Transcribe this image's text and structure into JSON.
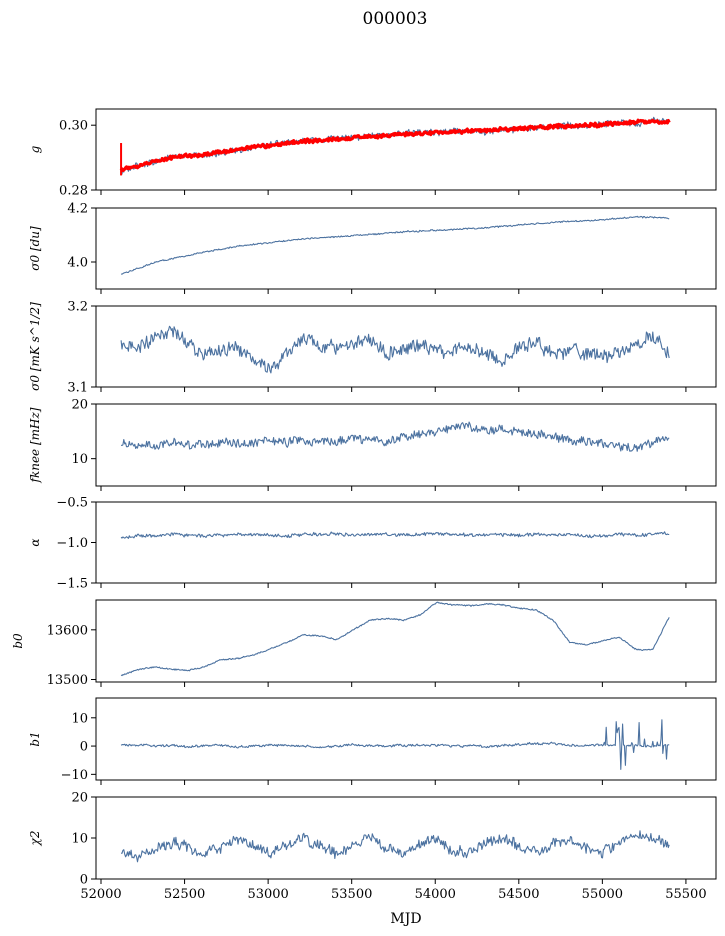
{
  "figure_title": "000003",
  "xlabel": "MJD",
  "colors": {
    "series": "#4c72a0",
    "overlay": "#ff0000",
    "axes": "#000000"
  },
  "chart_data": [
    {
      "type": "line",
      "ylabel": "g",
      "xlim": [
        51970,
        55680
      ],
      "ylim": [
        0.28,
        0.305
      ],
      "yticks": [
        0.28,
        0.3
      ],
      "ytick_labels": [
        "0.28",
        "0.30"
      ],
      "series": [
        {
          "x_range": [
            52120,
            55400
          ],
          "values": [
            0.2855,
            0.2872,
            0.2886,
            0.2902,
            0.2908,
            0.2905,
            0.2916,
            0.2922,
            0.2935,
            0.2941,
            0.2948,
            0.2952,
            0.2954,
            0.2962,
            0.296,
            0.2967,
            0.2969,
            0.2975,
            0.2976,
            0.2978,
            0.298,
            0.2983,
            0.2978,
            0.2987,
            0.2985,
            0.2993,
            0.2994,
            0.3,
            0.2996,
            0.3004,
            0.301,
            0.3001,
            0.3015,
            0.3011
          ],
          "noise": 0.001,
          "seed": 11
        },
        {
          "x_range": [
            52120,
            55400
          ],
          "values": [
            0.286,
            0.2873,
            0.2888,
            0.29,
            0.2905,
            0.291,
            0.2918,
            0.2925,
            0.2932,
            0.2938,
            0.2944,
            0.295,
            0.2954,
            0.2958,
            0.2961,
            0.2965,
            0.2968,
            0.2972,
            0.2975,
            0.2977,
            0.298,
            0.2983,
            0.2986,
            0.2988,
            0.299,
            0.2993,
            0.2995,
            0.2998,
            0.3,
            0.3003,
            0.3006,
            0.3008,
            0.3011,
            0.3012
          ],
          "noise": 0.0006,
          "seed": 12,
          "overlay": true
        }
      ]
    },
    {
      "type": "line",
      "ylabel": "σ0 [du]",
      "xlim": [
        51970,
        55680
      ],
      "ylim": [
        3.9,
        4.2
      ],
      "yticks": [
        4.0,
        4.2
      ],
      "ytick_labels": [
        "4.0",
        "4.2"
      ],
      "series": [
        {
          "x_range": [
            52120,
            55400
          ],
          "values": [
            3.955,
            3.975,
            3.998,
            4.012,
            4.024,
            4.037,
            4.047,
            4.058,
            4.066,
            4.072,
            4.08,
            4.085,
            4.09,
            4.094,
            4.098,
            4.102,
            4.107,
            4.112,
            4.115,
            4.117,
            4.12,
            4.124,
            4.127,
            4.132,
            4.138,
            4.143,
            4.146,
            4.15,
            4.153,
            4.157,
            4.162,
            4.167,
            4.165,
            4.162
          ],
          "noise": 0.003,
          "seed": 21
        }
      ]
    },
    {
      "type": "line",
      "ylabel": "σ0 [mK s^1/2]",
      "xlim": [
        51970,
        55680
      ],
      "ylim": [
        3.1,
        3.2
      ],
      "yticks": [
        3.1,
        3.2
      ],
      "ytick_labels": [
        "3.1",
        "3.2"
      ],
      "series": [
        {
          "x_range": [
            52120,
            55400
          ],
          "values": [
            3.152,
            3.148,
            3.16,
            3.17,
            3.155,
            3.14,
            3.145,
            3.15,
            3.132,
            3.12,
            3.145,
            3.16,
            3.15,
            3.148,
            3.152,
            3.16,
            3.14,
            3.15,
            3.152,
            3.145,
            3.148,
            3.15,
            3.14,
            3.13,
            3.152,
            3.155,
            3.14,
            3.145,
            3.142,
            3.138,
            3.145,
            3.15,
            3.165,
            3.14
          ],
          "noise": 0.009,
          "seed": 31
        }
      ]
    },
    {
      "type": "line",
      "ylabel": "fknee [mHz]",
      "xlim": [
        51970,
        55680
      ],
      "ylim": [
        5,
        20
      ],
      "yticks": [
        10,
        20
      ],
      "ytick_labels": [
        "10",
        "20"
      ],
      "series": [
        {
          "x_range": [
            52120,
            55400
          ],
          "values": [
            13.0,
            12.6,
            12.3,
            12.8,
            12.5,
            12.6,
            12.9,
            12.6,
            13.0,
            13.2,
            12.8,
            13.5,
            13.3,
            13.1,
            13.8,
            13.5,
            13.2,
            14.0,
            14.5,
            15.2,
            15.5,
            15.8,
            15.6,
            15.3,
            15.0,
            14.5,
            14.0,
            13.5,
            13.0,
            12.5,
            12.3,
            12.0,
            12.8,
            14.0
          ],
          "noise": 0.9,
          "seed": 41
        }
      ]
    },
    {
      "type": "line",
      "ylabel": "α",
      "xlim": [
        51970,
        55680
      ],
      "ylim": [
        -1.5,
        -0.5
      ],
      "yticks": [
        -1.5,
        -1.0,
        -0.5
      ],
      "ytick_labels": [
        "−1.5",
        "−1.0",
        "−0.5"
      ],
      "series": [
        {
          "x_range": [
            52120,
            55400
          ],
          "values": [
            -0.93,
            -0.92,
            -0.91,
            -0.9,
            -0.91,
            -0.92,
            -0.91,
            -0.9,
            -0.9,
            -0.91,
            -0.92,
            -0.9,
            -0.9,
            -0.89,
            -0.91,
            -0.9,
            -0.9,
            -0.91,
            -0.9,
            -0.89,
            -0.9,
            -0.91,
            -0.9,
            -0.9,
            -0.91,
            -0.9,
            -0.91,
            -0.9,
            -0.91,
            -0.92,
            -0.9,
            -0.91,
            -0.9,
            -0.89
          ],
          "noise": 0.022,
          "seed": 51
        }
      ]
    },
    {
      "type": "line",
      "ylabel": "b0",
      "xlim": [
        51970,
        55680
      ],
      "ylim": [
        13495,
        13660
      ],
      "yticks": [
        13500,
        13600
      ],
      "ytick_labels": [
        "13500",
        "13600"
      ],
      "series": [
        {
          "x_range": [
            52120,
            55400
          ],
          "values": [
            13508,
            13520,
            13525,
            13520,
            13518,
            13525,
            13540,
            13542,
            13550,
            13562,
            13575,
            13590,
            13588,
            13580,
            13600,
            13620,
            13622,
            13620,
            13630,
            13655,
            13650,
            13648,
            13652,
            13650,
            13643,
            13640,
            13620,
            13575,
            13570,
            13578,
            13585,
            13560,
            13560,
            13625
          ],
          "noise": 1.5,
          "seed": 61
        }
      ]
    },
    {
      "type": "line",
      "ylabel": "b1",
      "xlim": [
        51970,
        55680
      ],
      "ylim": [
        -12,
        17
      ],
      "yticks": [
        -10,
        0,
        10
      ],
      "ytick_labels": [
        "−10",
        "0",
        "10"
      ],
      "series": [
        {
          "x_range": [
            52120,
            55400
          ],
          "values": [
            0.5,
            0.3,
            0.0,
            0.2,
            -0.2,
            0.1,
            0.3,
            -0.2,
            0.0,
            0.4,
            0.2,
            0.0,
            -0.3,
            0.1,
            0.5,
            0.2,
            0.0,
            0.3,
            0.4,
            0.2,
            0.1,
            0.0,
            -0.2,
            0.2,
            0.5,
            1.0,
            0.8,
            0.3,
            0.2,
            0.5,
            0.3,
            0.2,
            0.0,
            0.5
          ],
          "noise": 0.45,
          "seed": 71,
          "spiky_after": 55000
        }
      ]
    },
    {
      "type": "line",
      "ylabel": "χ2",
      "xlim": [
        51970,
        55680
      ],
      "ylim": [
        0,
        20
      ],
      "yticks": [
        0,
        10,
        20
      ],
      "ytick_labels": [
        "0",
        "10",
        "20"
      ],
      "series": [
        {
          "x_range": [
            52120,
            55400
          ],
          "values": [
            6.5,
            5.5,
            7.0,
            9.0,
            8.0,
            6.0,
            7.5,
            9.5,
            8.0,
            6.5,
            8.5,
            10.0,
            8.0,
            6.0,
            8.5,
            10.5,
            7.5,
            6.0,
            8.5,
            9.5,
            7.0,
            6.0,
            9.0,
            10.0,
            8.0,
            6.5,
            8.5,
            10.0,
            7.5,
            6.5,
            9.0,
            11.0,
            10.0,
            8.0
          ],
          "noise": 1.4,
          "seed": 81
        }
      ]
    }
  ],
  "xticks": [
    52000,
    52500,
    53000,
    53500,
    54000,
    54500,
    55000,
    55500
  ],
  "xtick_labels": [
    "52000",
    "52500",
    "53000",
    "53500",
    "54000",
    "54500",
    "55000",
    "55500"
  ]
}
